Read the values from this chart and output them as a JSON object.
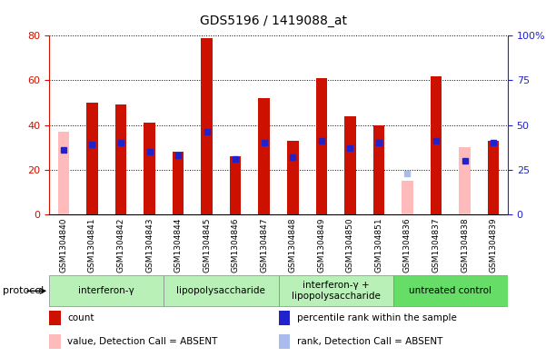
{
  "title": "GDS5196 / 1419088_at",
  "samples": [
    "GSM1304840",
    "GSM1304841",
    "GSM1304842",
    "GSM1304843",
    "GSM1304844",
    "GSM1304845",
    "GSM1304846",
    "GSM1304847",
    "GSM1304848",
    "GSM1304849",
    "GSM1304850",
    "GSM1304851",
    "GSM1304836",
    "GSM1304837",
    "GSM1304838",
    "GSM1304839"
  ],
  "counts": [
    null,
    50,
    49,
    41,
    28,
    79,
    26,
    52,
    33,
    61,
    44,
    40,
    null,
    62,
    null,
    33
  ],
  "absent_counts": [
    37,
    null,
    null,
    null,
    null,
    null,
    null,
    null,
    null,
    null,
    null,
    null,
    15,
    null,
    30,
    null
  ],
  "percentile_ranks": [
    36,
    39,
    40,
    35,
    33,
    46,
    31,
    40,
    32,
    41,
    37,
    40,
    null,
    41,
    30,
    40
  ],
  "absent_ranks": [
    null,
    null,
    null,
    null,
    null,
    null,
    null,
    null,
    null,
    null,
    null,
    null,
    23,
    null,
    null,
    null
  ],
  "groups": [
    {
      "name": "interferon-γ",
      "start": 0,
      "end": 4
    },
    {
      "name": "lipopolysaccharide",
      "start": 4,
      "end": 8
    },
    {
      "name": "interferon-γ +\nlipopolysaccharide",
      "start": 8,
      "end": 12
    },
    {
      "name": "untreated control",
      "start": 12,
      "end": 16
    }
  ],
  "group_colors": [
    "#b8f0b8",
    "#b8f0b8",
    "#b8f0b8",
    "#66dd66"
  ],
  "bar_color": "#cc1100",
  "absent_bar_color": "#ffbbbb",
  "rank_color": "#2222cc",
  "absent_rank_color": "#aabbee",
  "ylim_left": [
    0,
    80
  ],
  "ylim_right": [
    0,
    100
  ],
  "yticks_left": [
    0,
    20,
    40,
    60,
    80
  ],
  "yticks_right": [
    0,
    25,
    50,
    75,
    100
  ],
  "yticklabels_right": [
    "0",
    "25",
    "50",
    "75",
    "100%"
  ],
  "plot_bg_color": "#ffffff",
  "left_tick_color": "#cc1100",
  "right_tick_color": "#2222cc",
  "legend_items": [
    {
      "color": "#cc1100",
      "label": "count",
      "is_rect": true
    },
    {
      "color": "#2222cc",
      "label": "percentile rank within the sample",
      "is_rect": true
    },
    {
      "color": "#ffbbbb",
      "label": "value, Detection Call = ABSENT",
      "is_rect": true
    },
    {
      "color": "#aabbee",
      "label": "rank, Detection Call = ABSENT",
      "is_rect": true
    }
  ]
}
